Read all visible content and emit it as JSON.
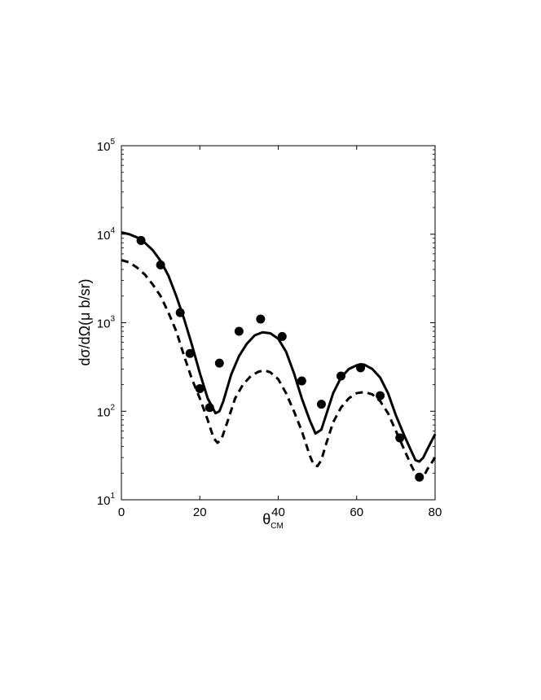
{
  "chart_data": {
    "type": "scatter",
    "title": "",
    "xlabel_main": "θ",
    "xlabel_sub": "CM",
    "ylabel": "dσ/dΩ(μ b/sr)",
    "xlim": [
      0,
      80
    ],
    "ylim": [
      10,
      100000
    ],
    "y_scale": "log",
    "grid": false,
    "legend": "none",
    "x_ticks": [
      0,
      20,
      40,
      60,
      80
    ],
    "y_ticks": [
      {
        "value": 10,
        "base": "10",
        "exp": "1"
      },
      {
        "value": 100,
        "base": "10",
        "exp": "2"
      },
      {
        "value": 1000,
        "base": "10",
        "exp": "3"
      },
      {
        "value": 10000,
        "base": "10",
        "exp": "4"
      },
      {
        "value": 100000,
        "base": "10",
        "exp": "5"
      }
    ],
    "series": [
      {
        "style": "markers",
        "points": [
          [
            5,
            8500
          ],
          [
            10,
            4500
          ],
          [
            15,
            1300
          ],
          [
            17.5,
            450
          ],
          [
            20,
            180
          ],
          [
            22.5,
            110
          ],
          [
            25,
            350
          ],
          [
            30,
            800
          ],
          [
            35.5,
            1100
          ],
          [
            41,
            700
          ],
          [
            46,
            220
          ],
          [
            51,
            120
          ],
          [
            56,
            250
          ],
          [
            61,
            310
          ],
          [
            66,
            150
          ],
          [
            71,
            50
          ],
          [
            76,
            18
          ]
        ]
      },
      {
        "style": "solid",
        "points": [
          [
            0,
            10500
          ],
          [
            2,
            10000
          ],
          [
            4,
            9200
          ],
          [
            6,
            8000
          ],
          [
            8,
            6600
          ],
          [
            10,
            5000
          ],
          [
            12,
            3400
          ],
          [
            14,
            2000
          ],
          [
            16,
            1100
          ],
          [
            18,
            560
          ],
          [
            20,
            270
          ],
          [
            22,
            140
          ],
          [
            24,
            95
          ],
          [
            25,
            100
          ],
          [
            26,
            130
          ],
          [
            28,
            260
          ],
          [
            30,
            420
          ],
          [
            32,
            580
          ],
          [
            34,
            720
          ],
          [
            36,
            780
          ],
          [
            38,
            760
          ],
          [
            40,
            660
          ],
          [
            42,
            470
          ],
          [
            44,
            270
          ],
          [
            46,
            140
          ],
          [
            48,
            80
          ],
          [
            49.5,
            56
          ],
          [
            51,
            62
          ],
          [
            52,
            85
          ],
          [
            54,
            160
          ],
          [
            56,
            240
          ],
          [
            58,
            300
          ],
          [
            60,
            330
          ],
          [
            61,
            340
          ],
          [
            62,
            335
          ],
          [
            64,
            300
          ],
          [
            66,
            240
          ],
          [
            68,
            160
          ],
          [
            70,
            90
          ],
          [
            72,
            55
          ],
          [
            74,
            35
          ],
          [
            75,
            28
          ],
          [
            76,
            27
          ],
          [
            77,
            30
          ],
          [
            78,
            37
          ],
          [
            80,
            55
          ]
        ]
      },
      {
        "style": "dashed",
        "points": [
          [
            0,
            5100
          ],
          [
            2,
            4800
          ],
          [
            4,
            4200
          ],
          [
            6,
            3500
          ],
          [
            8,
            2700
          ],
          [
            10,
            2000
          ],
          [
            12,
            1300
          ],
          [
            14,
            800
          ],
          [
            16,
            420
          ],
          [
            18,
            230
          ],
          [
            20,
            140
          ],
          [
            22,
            80
          ],
          [
            23.5,
            50
          ],
          [
            24.5,
            44
          ],
          [
            25.5,
            48
          ],
          [
            27,
            75
          ],
          [
            29,
            140
          ],
          [
            31,
            200
          ],
          [
            33,
            250
          ],
          [
            35,
            280
          ],
          [
            36.5,
            290
          ],
          [
            38,
            275
          ],
          [
            40,
            230
          ],
          [
            42,
            160
          ],
          [
            44,
            100
          ],
          [
            46,
            60
          ],
          [
            48,
            32
          ],
          [
            49,
            25
          ],
          [
            50,
            24
          ],
          [
            51,
            28
          ],
          [
            52,
            40
          ],
          [
            54,
            75
          ],
          [
            56,
            110
          ],
          [
            58,
            140
          ],
          [
            60,
            160
          ],
          [
            62,
            165
          ],
          [
            64,
            155
          ],
          [
            66,
            130
          ],
          [
            68,
            95
          ],
          [
            70,
            60
          ],
          [
            72,
            38
          ],
          [
            74,
            24
          ],
          [
            75.5,
            18
          ],
          [
            77,
            18
          ],
          [
            78,
            22
          ],
          [
            80,
            30
          ]
        ]
      }
    ]
  }
}
